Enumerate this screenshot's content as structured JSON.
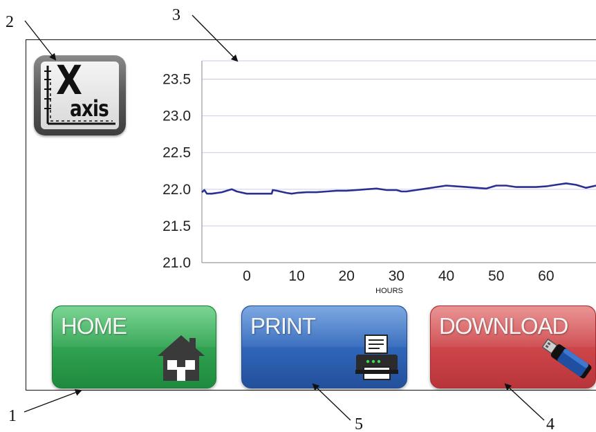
{
  "callouts": {
    "n1": "1",
    "n2": "2",
    "n3": "3",
    "n4": "4",
    "n5": "5"
  },
  "xaxis_button": {
    "letter": "X",
    "word": "axis",
    "icon": "x-axis-icon"
  },
  "buttons": {
    "home": {
      "label": "HOME",
      "icon": "house-icon",
      "color": "#2ea04f"
    },
    "print": {
      "label": "PRINT",
      "icon": "printer-icon",
      "color": "#2e64b8"
    },
    "download": {
      "label": "DOWNLOAD",
      "icon": "usb-drive-icon",
      "color": "#cc4448"
    }
  },
  "chart_data": {
    "type": "line",
    "title": "",
    "xlabel": "HOURS",
    "ylabel": "",
    "xlim": [
      -9,
      70
    ],
    "ylim": [
      21.0,
      23.75
    ],
    "xticks": [
      0,
      10,
      20,
      30,
      40,
      50,
      60
    ],
    "yticks": [
      21.0,
      21.5,
      22.0,
      22.5,
      23.0,
      23.5
    ],
    "ytick_labels": [
      "21.0",
      "21.5",
      "22.0",
      "22.5",
      "23.0",
      "23.5"
    ],
    "xtick_labels": [
      "0",
      "10",
      "20",
      "30",
      "40",
      "50",
      "60"
    ],
    "grid": "horizontal",
    "line_color": "#2b2f8f",
    "grid_color": "#c9c9ee",
    "series": [
      {
        "x": [
          -9,
          -8.5,
          -8,
          -7,
          -5,
          -4,
          -3,
          -2,
          0,
          2,
          4,
          5,
          5.2,
          6,
          8,
          9,
          10,
          12,
          14,
          16,
          18,
          20,
          22,
          24,
          26,
          28,
          30,
          31,
          32,
          34,
          36,
          38,
          40,
          42,
          44,
          46,
          48,
          50,
          52,
          54,
          56,
          58,
          60,
          62,
          64,
          66,
          68,
          70
        ],
        "y": [
          21.96,
          21.99,
          21.94,
          21.94,
          21.96,
          21.98,
          22.0,
          21.97,
          21.94,
          21.94,
          21.94,
          21.94,
          21.99,
          21.98,
          21.95,
          21.94,
          21.95,
          21.96,
          21.96,
          21.97,
          21.98,
          21.98,
          21.99,
          22.0,
          22.01,
          21.99,
          21.99,
          21.97,
          21.97,
          21.99,
          22.01,
          22.03,
          22.05,
          22.04,
          22.03,
          22.02,
          22.01,
          22.05,
          22.05,
          22.03,
          22.03,
          22.03,
          22.04,
          22.06,
          22.08,
          22.06,
          22.02,
          22.05
        ]
      }
    ]
  }
}
